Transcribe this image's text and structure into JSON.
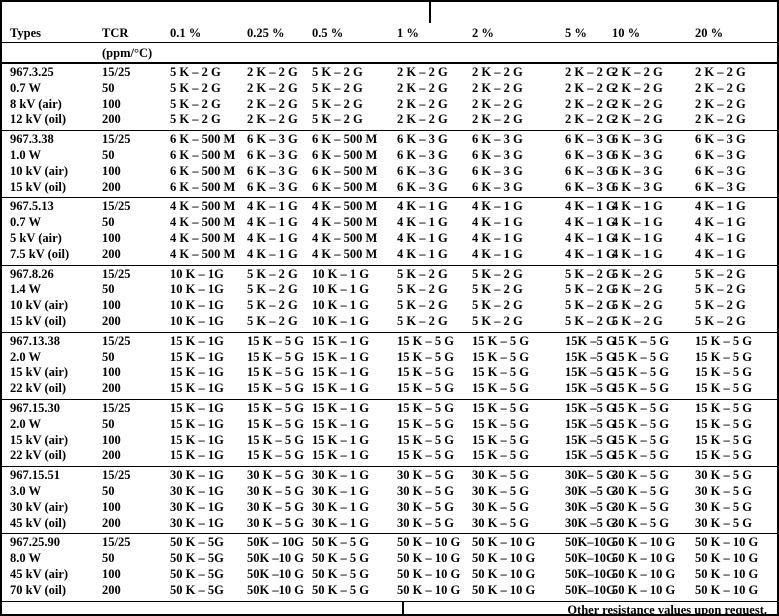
{
  "table": {
    "columns": [
      "Types",
      "TCR",
      "0.1 %",
      "0.25 %",
      "0.5 %",
      "1 %",
      "2 %",
      "5 %",
      "10 %",
      "20 %"
    ],
    "tcr_unit": "(ppm/°C)",
    "groups": [
      {
        "rows": [
          [
            "967.3.25",
            "15/25",
            "5 K – 2 G",
            "2 K – 2 G",
            "5 K – 2 G",
            "2 K – 2 G",
            "2 K – 2 G",
            "2 K – 2 G",
            "2 K – 2 G",
            "2 K – 2 G"
          ],
          [
            "0.7 W",
            "50",
            "5 K – 2 G",
            "2 K – 2 G",
            "5 K – 2 G",
            "2 K – 2 G",
            "2 K – 2 G",
            "2 K – 2 G",
            "2 K – 2 G",
            "2 K – 2 G"
          ],
          [
            "8 kV (air)",
            "100",
            "5 K – 2 G",
            "2 K – 2 G",
            "5 K – 2 G",
            "2 K – 2 G",
            "2 K – 2 G",
            "2 K – 2 G",
            "2 K – 2 G",
            "2 K – 2 G"
          ],
          [
            "12 kV (oil)",
            "200",
            "5 K – 2 G",
            "2 K – 2 G",
            "5 K – 2 G",
            "2 K – 2 G",
            "2 K – 2 G",
            "2 K – 2 G",
            "2 K – 2 G",
            "2 K – 2 G"
          ]
        ]
      },
      {
        "rows": [
          [
            "967.3.38",
            "15/25",
            "6 K – 500 M",
            "6 K – 3 G",
            "6 K – 500 M",
            "6 K – 3 G",
            "6 K – 3 G",
            "6 K – 3 G",
            "6 K – 3 G",
            "6 K – 3 G"
          ],
          [
            "1.0 W",
            "50",
            "6 K – 500 M",
            "6 K – 3 G",
            "6 K – 500 M",
            "6 K – 3 G",
            "6 K – 3 G",
            "6 K – 3 G",
            "6 K – 3 G",
            "6 K – 3 G"
          ],
          [
            "10 kV (air)",
            "100",
            "6 K – 500 M",
            "6 K – 3 G",
            "6 K – 500 M",
            "6 K – 3 G",
            "6 K – 3 G",
            "6 K – 3 G",
            "6 K – 3 G",
            "6 K – 3 G"
          ],
          [
            "15 kV (oil)",
            "200",
            "6 K – 500 M",
            "6 K – 3 G",
            "6 K – 500 M",
            "6 K – 3 G",
            "6 K – 3 G",
            "6 K – 3 G",
            "6 K – 3 G",
            "6 K – 3 G"
          ]
        ]
      },
      {
        "rows": [
          [
            "967.5.13",
            "15/25",
            "4 K – 500 M",
            "4 K – 1 G",
            "4 K – 500 M",
            "4 K – 1 G",
            "4 K – 1 G",
            "4 K – 1 G",
            "4 K – 1 G",
            "4 K – 1 G"
          ],
          [
            "0.7 W",
            "50",
            "4 K – 500 M",
            "4 K – 1 G",
            "4 K – 500 M",
            "4 K – 1 G",
            "4 K – 1 G",
            "4 K – 1 G",
            "4 K – 1 G",
            "4 K – 1 G"
          ],
          [
            "5 kV (air)",
            "100",
            "4 K – 500 M",
            "4 K – 1 G",
            "4 K – 500 M",
            "4 K – 1 G",
            "4 K – 1 G",
            "4 K – 1 G",
            "4 K – 1 G",
            "4 K – 1 G"
          ],
          [
            "7.5 kV (oil)",
            "200",
            "4 K – 500 M",
            "4 K – 1 G",
            "4 K – 500 M",
            "4 K – 1 G",
            "4 K – 1 G",
            "4 K – 1 G",
            "4 K – 1 G",
            "4 K – 1 G"
          ]
        ]
      },
      {
        "rows": [
          [
            "967.8.26",
            "15/25",
            "10 K – 1G",
            "5 K – 2 G",
            "10 K – 1 G",
            "5 K – 2 G",
            "5 K – 2 G",
            "5 K – 2 G",
            "5 K – 2 G",
            "5 K – 2 G"
          ],
          [
            "1.4 W",
            "50",
            "10 K – 1G",
            "5 K – 2 G",
            "10 K – 1 G",
            "5 K – 2 G",
            "5 K – 2 G",
            "5 K – 2 G",
            "5 K – 2 G",
            "5 K – 2 G"
          ],
          [
            "10 kV (air)",
            "100",
            "10 K – 1G",
            "5 K – 2 G",
            "10 K – 1 G",
            "5 K – 2 G",
            "5 K – 2 G",
            "5 K – 2 G",
            "5 K – 2 G",
            "5 K – 2 G"
          ],
          [
            "15 kV (oil)",
            "200",
            "10 K – 1G",
            "5 K – 2 G",
            "10 K – 1 G",
            "5 K – 2 G",
            "5 K – 2 G",
            "5 K – 2 G",
            "5 K – 2 G",
            "5 K – 2 G"
          ]
        ]
      },
      {
        "rows": [
          [
            "967.13.38",
            "15/25",
            "15 K – 1G",
            "15 K – 5 G",
            "15 K – 1 G",
            "15 K – 5 G",
            "15 K – 5 G",
            "15K –5 G",
            "15 K – 5 G",
            "15 K – 5 G"
          ],
          [
            "2.0 W",
            "50",
            "15 K – 1G",
            "15 K – 5 G",
            "15 K – 1 G",
            "15 K – 5 G",
            "15 K – 5 G",
            "15K –5 G",
            "15 K – 5 G",
            "15 K – 5 G"
          ],
          [
            "15 kV (air)",
            "100",
            "15 K – 1G",
            "15 K – 5 G",
            "15 K – 1 G",
            "15 K – 5 G",
            "15 K – 5 G",
            "15K –5 G",
            "15 K – 5 G",
            "15 K – 5 G"
          ],
          [
            "22 kV (oil)",
            "200",
            "15 K – 1G",
            "15 K – 5 G",
            "15 K – 1 G",
            "15 K – 5 G",
            "15 K – 5 G",
            "15K –5 G",
            "15 K – 5 G",
            "15 K – 5 G"
          ]
        ]
      },
      {
        "rows": [
          [
            "967.15.30",
            "15/25",
            "15 K – 1G",
            "15 K – 5 G",
            "15 K – 1 G",
            "15 K – 5 G",
            "15 K – 5 G",
            "15K –5 G",
            "15 K – 5 G",
            "15 K – 5 G"
          ],
          [
            "2.0 W",
            "50",
            "15 K – 1G",
            "15 K – 5 G",
            "15 K – 1 G",
            "15 K – 5 G",
            "15 K – 5 G",
            "15K –5 G",
            "15 K – 5 G",
            "15 K – 5 G"
          ],
          [
            "15 kV (air)",
            "100",
            "15 K – 1G",
            "15 K – 5 G",
            "15 K – 1 G",
            "15 K – 5 G",
            "15 K – 5 G",
            "15K –5 G",
            "15 K – 5 G",
            "15 K – 5 G"
          ],
          [
            "22 kV (oil)",
            "200",
            "15 K – 1G",
            "15 K – 5 G",
            "15 K – 1 G",
            "15 K – 5 G",
            "15 K – 5 G",
            "15K –5 G",
            "15 K – 5 G",
            "15 K – 5 G"
          ]
        ]
      },
      {
        "rows": [
          [
            "967.15.51",
            "15/25",
            "30 K – 1G",
            "30 K – 5 G",
            "30 K – 1 G",
            "30 K – 5 G",
            "30 K – 5 G",
            "30K– 5 G",
            "30 K – 5 G",
            "30 K – 5 G"
          ],
          [
            "3.0 W",
            "50",
            "30 K – 1G",
            "30 K – 5 G",
            "30 K – 1 G",
            "30 K – 5 G",
            "30 K – 5 G",
            "30K –5 G",
            "30 K – 5 G",
            "30 K – 5 G"
          ],
          [
            "30 kV (air)",
            "100",
            "30 K – 1G",
            "30 K – 5 G",
            "30 K – 1 G",
            "30 K – 5 G",
            "30 K – 5 G",
            "30K –5 G",
            "30 K – 5 G",
            "30 K – 5 G"
          ],
          [
            "45 kV (oil)",
            "200",
            "30 K – 1G",
            "30 K – 5 G",
            "30 K – 1 G",
            "30 K – 5 G",
            "30 K – 5 G",
            "30K –5 G",
            "30 K – 5 G",
            "30 K – 5 G"
          ]
        ]
      },
      {
        "rows": [
          [
            "967.25.90",
            "15/25",
            "50 K – 5G",
            "50K – 10G",
            "50 K – 5 G",
            "50 K – 10 G",
            "50 K – 10 G",
            "50K–10G",
            "50 K – 10 G",
            "50 K – 10 G"
          ],
          [
            "8.0 W",
            "50",
            "50 K – 5G",
            "50K –10 G",
            "50 K – 5 G",
            "50 K – 10 G",
            "50 K – 10 G",
            "50K–10G",
            "50 K – 10 G",
            "50 K – 10 G"
          ],
          [
            "45 kV (air)",
            "100",
            "50 K – 5G",
            "50K –10 G",
            "50 K – 5 G",
            "50 K – 10 G",
            "50 K – 10 G",
            "50K–10G",
            "50 K – 10 G",
            "50 K – 10 G"
          ],
          [
            "70 kV (oil)",
            "200",
            "50 K – 5G",
            "50K –10 G",
            "50 K – 5 G",
            "50 K – 10 G",
            "50 K – 10 G",
            "50K–10G",
            "50 K – 10 G",
            "50 K – 10 G"
          ]
        ]
      }
    ],
    "footer_note": "Other resistance values upon request.",
    "colors": {
      "text": "#000000",
      "background": "#ffffff",
      "rule": "#000000"
    }
  }
}
